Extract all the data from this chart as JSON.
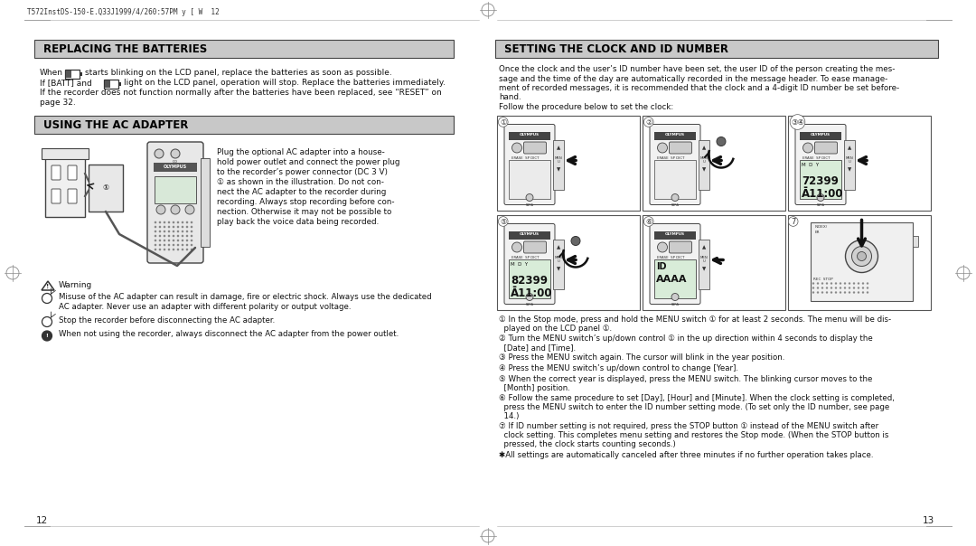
{
  "bg_color": "#ffffff",
  "header_text": "T572InstDS-150-E.Q33J1999/4/260:57PM y [ W  12",
  "page_number_left": "12",
  "page_number_right": "13",
  "left_section1_title": "REPLACING THE BATTERIES",
  "left_section2_title": "USING THE AC ADAPTER",
  "ac_body_lines": [
    "Plug the optional AC adapter into a house-",
    "hold power outlet and connect the power plug",
    "to the recorder’s power connector (DC 3 V)",
    "① as shown in the illustration. Do not con-",
    "nect the AC adapter to the recorder during",
    "recording. Always stop recording before con-",
    "nection. Otherwise it may not be possible to",
    "play back the voice data being recorded."
  ],
  "warning_title": "Warning",
  "warning_items": [
    "Misuse of the AC adapter can result in damage, fire or electric shock. Always use the dedicated\nAC adapter. Never use an adapter with different polarity or output voltage.",
    "Stop the recorder before disconnecting the AC adapter.",
    "When not using the recorder, always disconnect the AC adapter from the power outlet."
  ],
  "right_section_title": "SETTING THE CLOCK AND ID NUMBER",
  "right_intro_lines": [
    "Once the clock and the user’s ID number have been set, the user ID of the person creating the mes-",
    "sage and the time of the day are automatically recorded in the message header. To ease manage-",
    "ment of recorded messages, it is recommended that the clock and a 4-digit ID number be set before-",
    "hand.",
    "Follow the procedure below to set the clock:"
  ],
  "right_steps": [
    "① In the Stop mode, press and hold the MENU switch ① for at least 2 seconds. The menu will be dis-\n  played on the LCD panel ①.",
    "② Turn the MENU switch’s up/down control ① in the up direction within 4 seconds to display the\n  [Date] and [Time].",
    "③ Press the MENU switch again. The cursor will blink in the year position.",
    "④ Press the MENU switch’s up/down control to change [Year].",
    "⑤ When the correct year is displayed, press the MENU switch. The blinking cursor moves to the\n  [Month] position.",
    "⑥ Follow the same procedure to set [Day], [Hour] and [Minute]. When the clock setting is completed,\n  press the MENU switch to enter the ID number setting mode. (To set only the ID number, see page\n  14.)",
    "⑦ If ID number setting is not required, press the STOP button ① instead of the MENU switch after\n  clock setting. This completes menu setting and restores the Stop mode. (When the STOP button is\n  pressed, the clock starts counting seconds.)",
    "✱All settings are automatically canceled after three minutes if no further operation takes place."
  ],
  "section_header_bg": "#c8c8c8",
  "body_text_color": "#111111",
  "batt_line1": "When",
  "batt_line1b": "starts blinking on the LCD panel, replace the batteries as soon as possible.",
  "batt_line2": "If [BATT] and",
  "batt_line2b": "light on the LCD panel, operation will stop. Replace the batteries immediately.",
  "batt_line3": "If the recorder does not function normally after the batteries have been replaced, see “RESET” on",
  "batt_line3b": "page 32."
}
